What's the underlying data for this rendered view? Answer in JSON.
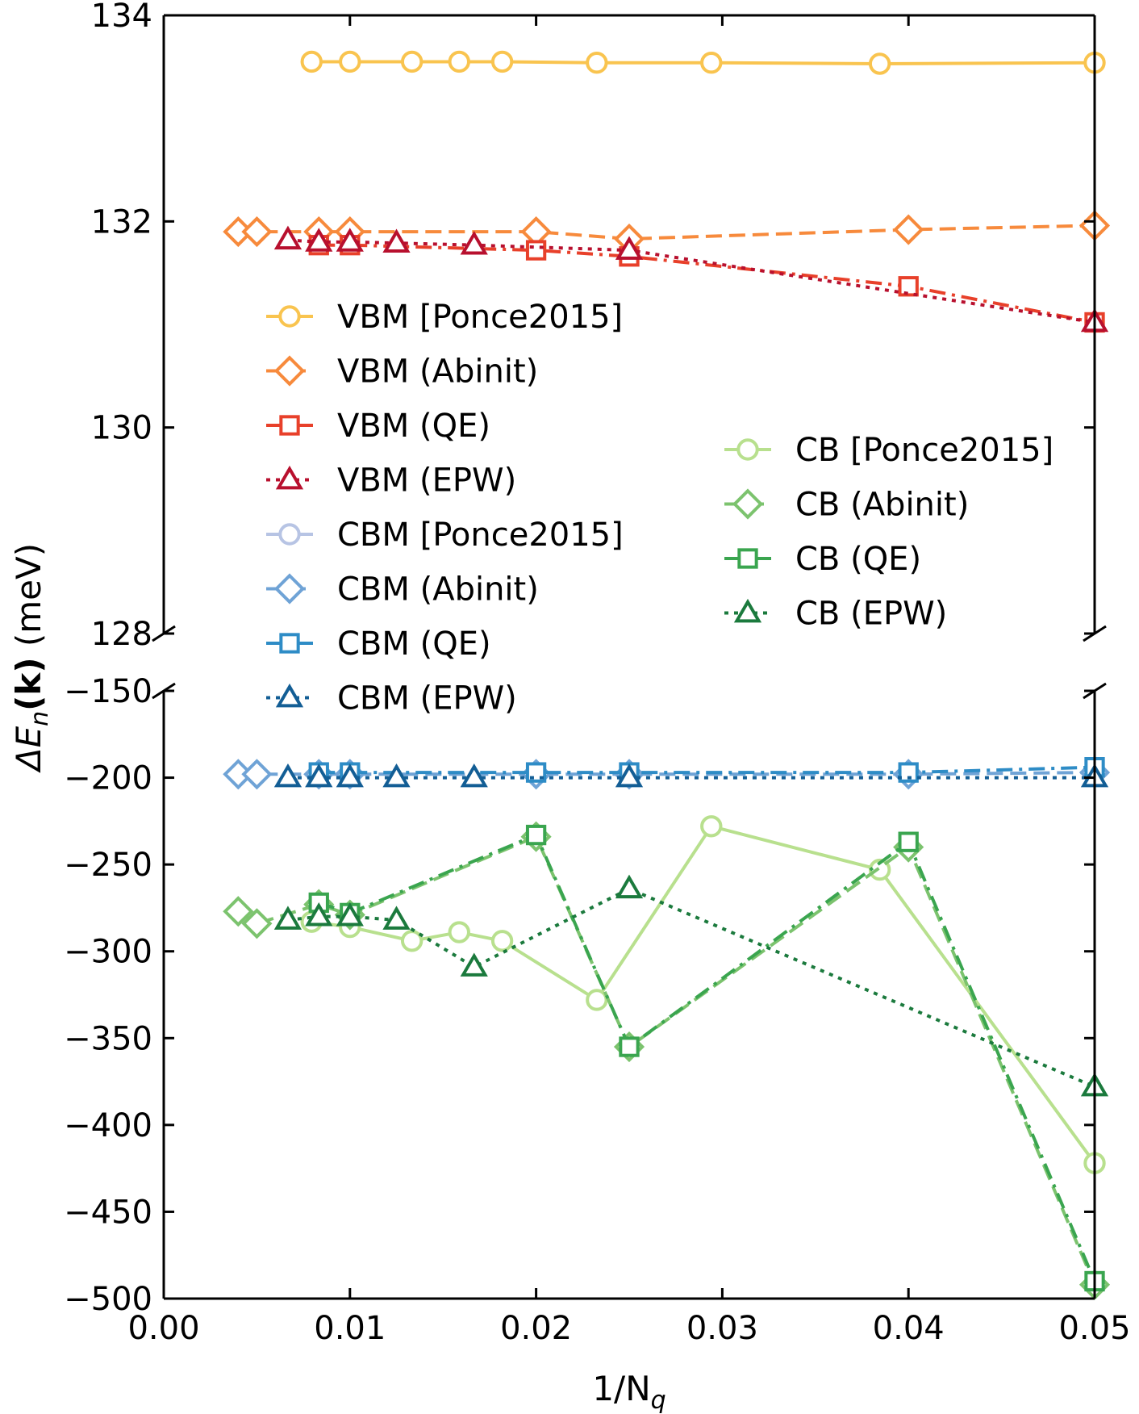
{
  "chart_data": {
    "type": "line",
    "title": "",
    "xlabel_base": "1/N",
    "xlabel_sub": "q",
    "ylabel_prefix": "ΔE",
    "ylabel_sub": "n",
    "ylabel_k": "(k)",
    "ylabel_unit": " (meV)",
    "xlim": [
      0.0,
      0.05
    ],
    "xticks": [
      "0.00",
      "0.01",
      "0.02",
      "0.03",
      "0.04",
      "0.05"
    ],
    "broken_axis": true,
    "top_panel": {
      "ylim": [
        128,
        134
      ],
      "yticks": [
        "128",
        "130",
        "132",
        "134"
      ]
    },
    "bottom_panel": {
      "ylim": [
        -500,
        -150
      ],
      "yticks": [
        "−150",
        "−200",
        "−250",
        "−300",
        "−350",
        "−400",
        "−450",
        "−500"
      ]
    },
    "legend_left": [
      "VBM [Ponce2015]",
      "VBM (Abinit)",
      "VBM (QE)",
      "VBM (EPW)",
      "CBM [Ponce2015]",
      "CBM (Abinit)",
      "CBM (QE)",
      "CBM (EPW)"
    ],
    "legend_right": [
      "CB [Ponce2015]",
      "CB (Abinit)",
      "CB (QE)",
      "CB (EPW)"
    ],
    "series": [
      {
        "name": "VBM [Ponce2015]",
        "panel": "top",
        "color": "#f9c44f",
        "marker": "circle",
        "dash": "solid",
        "x": [
          0.00794,
          0.01,
          0.01333,
          0.01587,
          0.01818,
          0.02326,
          0.02941,
          0.03846,
          0.05
        ],
        "y": [
          133.55,
          133.55,
          133.55,
          133.55,
          133.55,
          133.54,
          133.54,
          133.53,
          133.54
        ]
      },
      {
        "name": "VBM (Abinit)",
        "panel": "top",
        "color": "#f78a3c",
        "marker": "diamond",
        "dash": "dashed",
        "x": [
          0.004,
          0.005,
          0.00833,
          0.01,
          0.02,
          0.025,
          0.04,
          0.05
        ],
        "y": [
          131.9,
          131.9,
          131.9,
          131.9,
          131.9,
          131.83,
          131.92,
          131.96
        ]
      },
      {
        "name": "VBM (QE)",
        "panel": "top",
        "color": "#e8402a",
        "marker": "square",
        "dash": "dashdot",
        "x": [
          0.00833,
          0.01,
          0.02,
          0.025,
          0.04,
          0.05
        ],
        "y": [
          131.77,
          131.77,
          131.72,
          131.66,
          131.37,
          131.02
        ]
      },
      {
        "name": "VBM (EPW)",
        "panel": "top",
        "color": "#b8102e",
        "marker": "triangle",
        "dash": "dotted",
        "x": [
          0.00667,
          0.00833,
          0.01,
          0.0125,
          0.01667,
          0.025,
          0.05
        ],
        "y": [
          131.82,
          131.8,
          131.8,
          131.79,
          131.77,
          131.72,
          131.02
        ]
      },
      {
        "name": "CBM [Ponce2015]",
        "panel": "bottom",
        "color": "#b7c4e4",
        "marker": "circle",
        "dash": "solid",
        "x": [],
        "y": []
      },
      {
        "name": "CBM (Abinit)",
        "panel": "bottom",
        "color": "#6fa3d6",
        "marker": "diamond",
        "dash": "dashed",
        "x": [
          0.004,
          0.005,
          0.00833,
          0.01,
          0.02,
          0.025,
          0.04,
          0.05
        ],
        "y": [
          -198,
          -198,
          -198,
          -198,
          -198,
          -198,
          -198,
          -197
        ]
      },
      {
        "name": "CBM (QE)",
        "panel": "bottom",
        "color": "#2e8cc6",
        "marker": "square",
        "dash": "dashdot",
        "x": [
          0.00833,
          0.01,
          0.02,
          0.025,
          0.04,
          0.05
        ],
        "y": [
          -197,
          -197,
          -197,
          -197,
          -197,
          -194
        ]
      },
      {
        "name": "CBM (EPW)",
        "panel": "bottom",
        "color": "#135e95",
        "marker": "triangle",
        "dash": "dotted",
        "x": [
          0.00667,
          0.00833,
          0.01,
          0.0125,
          0.01667,
          0.025,
          0.05
        ],
        "y": [
          -200,
          -200,
          -200,
          -200,
          -200,
          -200,
          -200
        ]
      },
      {
        "name": "CB [Ponce2015]",
        "panel": "bottom",
        "color": "#b8e08e",
        "marker": "circle",
        "dash": "solid",
        "x": [
          0.00794,
          0.01,
          0.01333,
          0.01587,
          0.01818,
          0.02326,
          0.02941,
          0.03846,
          0.05
        ],
        "y": [
          -283,
          -286,
          -294,
          -289,
          -294,
          -328,
          -228,
          -253,
          -422
        ]
      },
      {
        "name": "CB (Abinit)",
        "panel": "bottom",
        "color": "#7cc36e",
        "marker": "diamond",
        "dash": "dashed",
        "x": [
          0.004,
          0.005,
          0.00833,
          0.01,
          0.02,
          0.025,
          0.04,
          0.05
        ],
        "y": [
          -277,
          -284,
          -273,
          -279,
          -234,
          -355,
          -240,
          -492
        ]
      },
      {
        "name": "CB (QE)",
        "panel": "bottom",
        "color": "#3aa54f",
        "marker": "square",
        "dash": "dashdot",
        "x": [
          0.00833,
          0.01,
          0.02,
          0.025,
          0.04,
          0.05
        ],
        "y": [
          -272,
          -278,
          -233,
          -355,
          -237,
          -490
        ]
      },
      {
        "name": "CB (EPW)",
        "panel": "bottom",
        "color": "#1b7a3d",
        "marker": "triangle",
        "dash": "dotted",
        "x": [
          0.00667,
          0.00833,
          0.01,
          0.0125,
          0.01667,
          0.025,
          0.05
        ],
        "y": [
          -282,
          -280,
          -280,
          -282,
          -309,
          -264,
          -378
        ]
      }
    ]
  }
}
